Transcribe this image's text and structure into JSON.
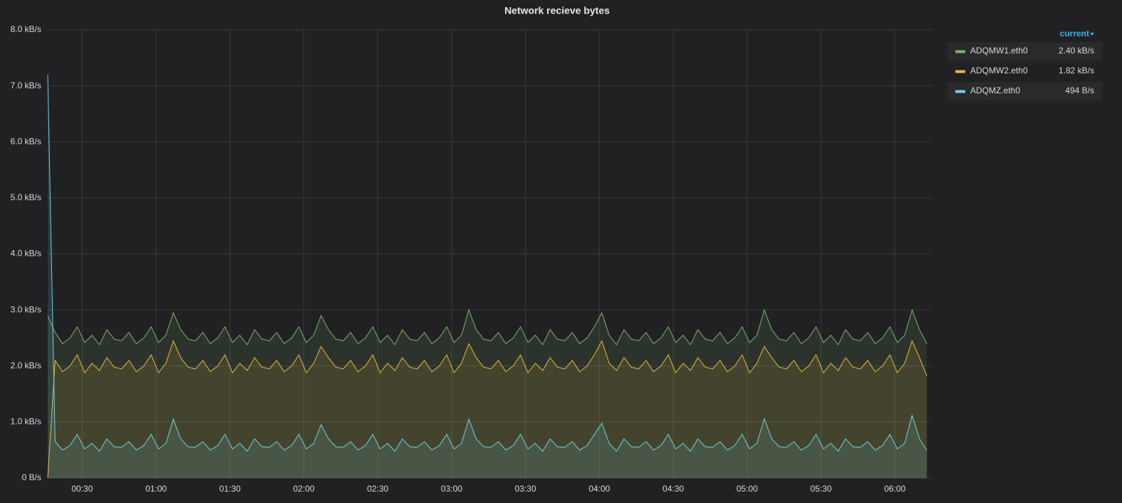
{
  "chart_data": {
    "type": "line",
    "title": "Network recieve bytes",
    "x": [
      "00:16",
      "00:19",
      "00:22",
      "00:25",
      "00:28",
      "00:31",
      "00:34",
      "00:37",
      "00:40",
      "00:43",
      "00:46",
      "00:49",
      "00:52",
      "00:55",
      "00:58",
      "01:01",
      "01:04",
      "01:07",
      "01:10",
      "01:13",
      "01:16",
      "01:19",
      "01:22",
      "01:25",
      "01:28",
      "01:31",
      "01:34",
      "01:37",
      "01:40",
      "01:43",
      "01:46",
      "01:49",
      "01:52",
      "01:55",
      "01:58",
      "02:01",
      "02:04",
      "02:07",
      "02:10",
      "02:13",
      "02:16",
      "02:19",
      "02:22",
      "02:25",
      "02:28",
      "02:31",
      "02:34",
      "02:37",
      "02:40",
      "02:43",
      "02:46",
      "02:49",
      "02:52",
      "02:55",
      "02:58",
      "03:01",
      "03:04",
      "03:07",
      "03:10",
      "03:13",
      "03:16",
      "03:19",
      "03:22",
      "03:25",
      "03:28",
      "03:31",
      "03:34",
      "03:37",
      "03:40",
      "03:43",
      "03:46",
      "03:49",
      "03:52",
      "03:55",
      "03:58",
      "04:01",
      "04:04",
      "04:07",
      "04:10",
      "04:13",
      "04:16",
      "04:19",
      "04:22",
      "04:25",
      "04:28",
      "04:31",
      "04:34",
      "04:37",
      "04:40",
      "04:43",
      "04:46",
      "04:49",
      "04:52",
      "04:55",
      "04:58",
      "05:01",
      "05:04",
      "05:07",
      "05:10",
      "05:13",
      "05:16",
      "05:19",
      "05:22",
      "05:25",
      "05:28",
      "05:31",
      "05:34",
      "05:37",
      "05:40",
      "05:43",
      "05:46",
      "05:49",
      "05:52",
      "05:55",
      "05:58",
      "06:01",
      "06:04",
      "06:07",
      "06:10",
      "06:13"
    ],
    "series": [
      {
        "name": "ADQMW1.eth0",
        "color": "#7eb26d",
        "legend_value": {
          "value": 2400,
          "label": "2.40 kB/s"
        },
        "values": [
          2900,
          2600,
          2400,
          2500,
          2700,
          2420,
          2550,
          2380,
          2650,
          2480,
          2450,
          2600,
          2400,
          2500,
          2700,
          2420,
          2550,
          2950,
          2650,
          2480,
          2450,
          2600,
          2400,
          2500,
          2700,
          2420,
          2550,
          2380,
          2650,
          2480,
          2450,
          2600,
          2400,
          2500,
          2700,
          2420,
          2550,
          2900,
          2650,
          2480,
          2450,
          2600,
          2400,
          2500,
          2700,
          2420,
          2550,
          2380,
          2650,
          2480,
          2450,
          2600,
          2400,
          2500,
          2700,
          2420,
          2550,
          3000,
          2650,
          2480,
          2450,
          2600,
          2400,
          2500,
          2700,
          2420,
          2550,
          2380,
          2650,
          2480,
          2450,
          2600,
          2400,
          2500,
          2700,
          2950,
          2550,
          2380,
          2650,
          2480,
          2450,
          2600,
          2400,
          2500,
          2700,
          2420,
          2550,
          2380,
          2650,
          2480,
          2450,
          2600,
          2400,
          2500,
          2700,
          2420,
          2550,
          3000,
          2650,
          2480,
          2450,
          2600,
          2400,
          2500,
          2700,
          2420,
          2550,
          2380,
          2650,
          2480,
          2450,
          2600,
          2400,
          2500,
          2700,
          2420,
          2550,
          3000,
          2650,
          2400
        ]
      },
      {
        "name": "ADQMW2.eth0",
        "color": "#eab839",
        "legend_value": {
          "value": 1820,
          "label": "1.82 kB/s"
        },
        "values": [
          0,
          2100,
          1900,
          2000,
          2200,
          1880,
          2050,
          1920,
          2150,
          1980,
          1950,
          2100,
          1900,
          2000,
          2200,
          1880,
          2050,
          2450,
          2150,
          1980,
          1950,
          2100,
          1900,
          2000,
          2200,
          1880,
          2050,
          1920,
          2150,
          1980,
          1950,
          2100,
          1900,
          2000,
          2200,
          1880,
          2050,
          2350,
          2150,
          1980,
          1950,
          2100,
          1900,
          2000,
          2200,
          1880,
          2050,
          1920,
          2150,
          1980,
          1950,
          2100,
          1900,
          2000,
          2200,
          1880,
          2050,
          2400,
          2150,
          1980,
          1950,
          2100,
          1900,
          2000,
          2200,
          1880,
          2050,
          1920,
          2150,
          1980,
          1950,
          2100,
          1900,
          2000,
          2200,
          2450,
          2050,
          1920,
          2150,
          1980,
          1950,
          2100,
          1900,
          2000,
          2200,
          1880,
          2050,
          1920,
          2150,
          1980,
          1950,
          2100,
          1900,
          2000,
          2200,
          1880,
          2050,
          2350,
          2150,
          1980,
          1950,
          2100,
          1900,
          2000,
          2200,
          1880,
          2050,
          1920,
          2150,
          1980,
          1950,
          2100,
          1900,
          2000,
          2200,
          1880,
          2050,
          2450,
          2150,
          1820
        ]
      },
      {
        "name": "ADQMZ.eth0",
        "color": "#6ed0e0",
        "legend_value": {
          "value": 494,
          "label": "494 B/s"
        },
        "values": [
          7200,
          650,
          500,
          580,
          780,
          520,
          620,
          480,
          700,
          560,
          550,
          650,
          500,
          580,
          780,
          520,
          620,
          1050,
          700,
          560,
          550,
          650,
          500,
          580,
          780,
          520,
          620,
          480,
          700,
          560,
          550,
          650,
          500,
          580,
          780,
          520,
          620,
          950,
          700,
          560,
          550,
          650,
          500,
          580,
          780,
          520,
          620,
          480,
          700,
          560,
          550,
          650,
          500,
          580,
          780,
          520,
          620,
          1050,
          700,
          560,
          550,
          650,
          500,
          580,
          780,
          520,
          620,
          480,
          700,
          560,
          550,
          650,
          500,
          580,
          780,
          980,
          620,
          480,
          700,
          560,
          550,
          650,
          500,
          580,
          780,
          520,
          620,
          480,
          700,
          560,
          550,
          650,
          500,
          580,
          780,
          520,
          620,
          1060,
          700,
          560,
          550,
          650,
          500,
          580,
          780,
          520,
          620,
          480,
          700,
          560,
          550,
          650,
          500,
          580,
          780,
          520,
          620,
          1120,
          700,
          494
        ]
      }
    ],
    "xlim": [
      "00:16",
      "06:15"
    ],
    "xticks": [
      "00:30",
      "01:00",
      "01:30",
      "02:00",
      "02:30",
      "03:00",
      "03:30",
      "04:00",
      "04:30",
      "05:00",
      "05:30",
      "06:00"
    ],
    "ylim": [
      0,
      8000
    ],
    "yticks": [
      {
        "value": 0,
        "label": "0 B/s"
      },
      {
        "value": 1000,
        "label": "1.0 kB/s"
      },
      {
        "value": 2000,
        "label": "2.0 kB/s"
      },
      {
        "value": 3000,
        "label": "3.0 kB/s"
      },
      {
        "value": 4000,
        "label": "4.0 kB/s"
      },
      {
        "value": 5000,
        "label": "5.0 kB/s"
      },
      {
        "value": 6000,
        "label": "6.0 kB/s"
      },
      {
        "value": 7000,
        "label": "7.0 kB/s"
      },
      {
        "value": 8000,
        "label": "8.0 kB/s"
      }
    ],
    "grid": true,
    "fill": true,
    "legend": {
      "position": "right",
      "column": "current"
    }
  }
}
